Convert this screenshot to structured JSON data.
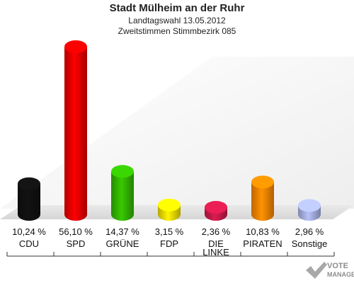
{
  "header": {
    "title": "Stadt Mülheim an der Ruhr",
    "line1": "Landtagswahl 13.05.2012",
    "line2": "Zweitstimmen Stimmbezirk 085"
  },
  "watermark": {
    "line1": "VOTE",
    "line2": "MANAGER"
  },
  "chart_data": {
    "type": "bar",
    "title": "Stadt Mülheim an der Ruhr",
    "subtitle": [
      "Landtagswahl 13.05.2012",
      "Zweitstimmen Stimmbezirk 085"
    ],
    "categories": [
      "CDU",
      "SPD",
      "GRÜNE",
      "FDP",
      "DIE LINKE",
      "PIRATEN",
      "Sonstige"
    ],
    "values": [
      10.24,
      56.1,
      14.37,
      3.15,
      2.36,
      10.83,
      2.96
    ],
    "value_labels": [
      "10,24 %",
      "56,10 %",
      "14,37 %",
      "3,15 %",
      "2,36 %",
      "10,83 %",
      "2,96 %"
    ],
    "colors": [
      "#111111",
      "#ee0000",
      "#33bb00",
      "#f4e300",
      "#cc1a4a",
      "#ff8800",
      "#aab4e6"
    ],
    "ylim": [
      0,
      60
    ],
    "grid": false,
    "legend": "none"
  }
}
